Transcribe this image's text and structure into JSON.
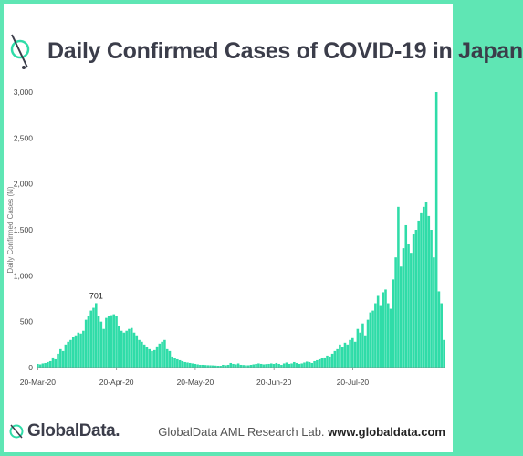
{
  "title": "Daily Confirmed Cases of COVID-19 in Japan",
  "footer": {
    "brand": "GlobalData.",
    "source": "GlobalData AML Research Lab.",
    "url": "www.globaldata.com"
  },
  "colors": {
    "bar": "#2fdca8",
    "border": "#5fe6b4",
    "title": "#3b3d4a"
  },
  "chart_data": {
    "type": "bar",
    "title": "Daily Confirmed Cases of COVID-19 in Japan",
    "xlabel": "",
    "ylabel": "Daily Confirmed Cases (N)",
    "ylim": [
      0,
      3000
    ],
    "yticks": [
      "0",
      "500",
      "1,000",
      "1,500",
      "2,000",
      "2,500",
      "3,000"
    ],
    "xticks": [
      "20-Mar-20",
      "20-Apr-20",
      "20-May-20",
      "20-Jun-20",
      "20-Jul-20"
    ],
    "grid": false,
    "annotations": [
      {
        "label": "701",
        "value": 701
      }
    ],
    "values": [
      40,
      35,
      45,
      50,
      60,
      70,
      110,
      90,
      150,
      200,
      180,
      250,
      280,
      300,
      330,
      350,
      380,
      370,
      400,
      520,
      560,
      620,
      650,
      701,
      560,
      500,
      420,
      540,
      560,
      570,
      580,
      560,
      450,
      400,
      380,
      400,
      420,
      430,
      380,
      350,
      300,
      280,
      250,
      220,
      200,
      180,
      190,
      230,
      260,
      280,
      300,
      200,
      180,
      120,
      100,
      90,
      80,
      70,
      60,
      55,
      50,
      45,
      40,
      35,
      30,
      30,
      28,
      26,
      25,
      24,
      22,
      20,
      20,
      30,
      25,
      30,
      50,
      40,
      35,
      45,
      30,
      28,
      25,
      25,
      30,
      35,
      40,
      45,
      40,
      35,
      38,
      40,
      45,
      40,
      50,
      40,
      30,
      45,
      55,
      40,
      45,
      60,
      50,
      40,
      45,
      55,
      65,
      60,
      50,
      70,
      80,
      90,
      100,
      110,
      130,
      120,
      150,
      180,
      200,
      250,
      220,
      270,
      250,
      300,
      320,
      280,
      420,
      380,
      480,
      350,
      520,
      600,
      620,
      700,
      780,
      680,
      820,
      850,
      700,
      640,
      960,
      1200,
      1750,
      1100,
      1300,
      1550,
      1350,
      1250,
      1450,
      1500,
      1600,
      1680,
      1750,
      1800,
      1650,
      1500,
      1200,
      3000,
      830,
      700,
      300
    ]
  }
}
